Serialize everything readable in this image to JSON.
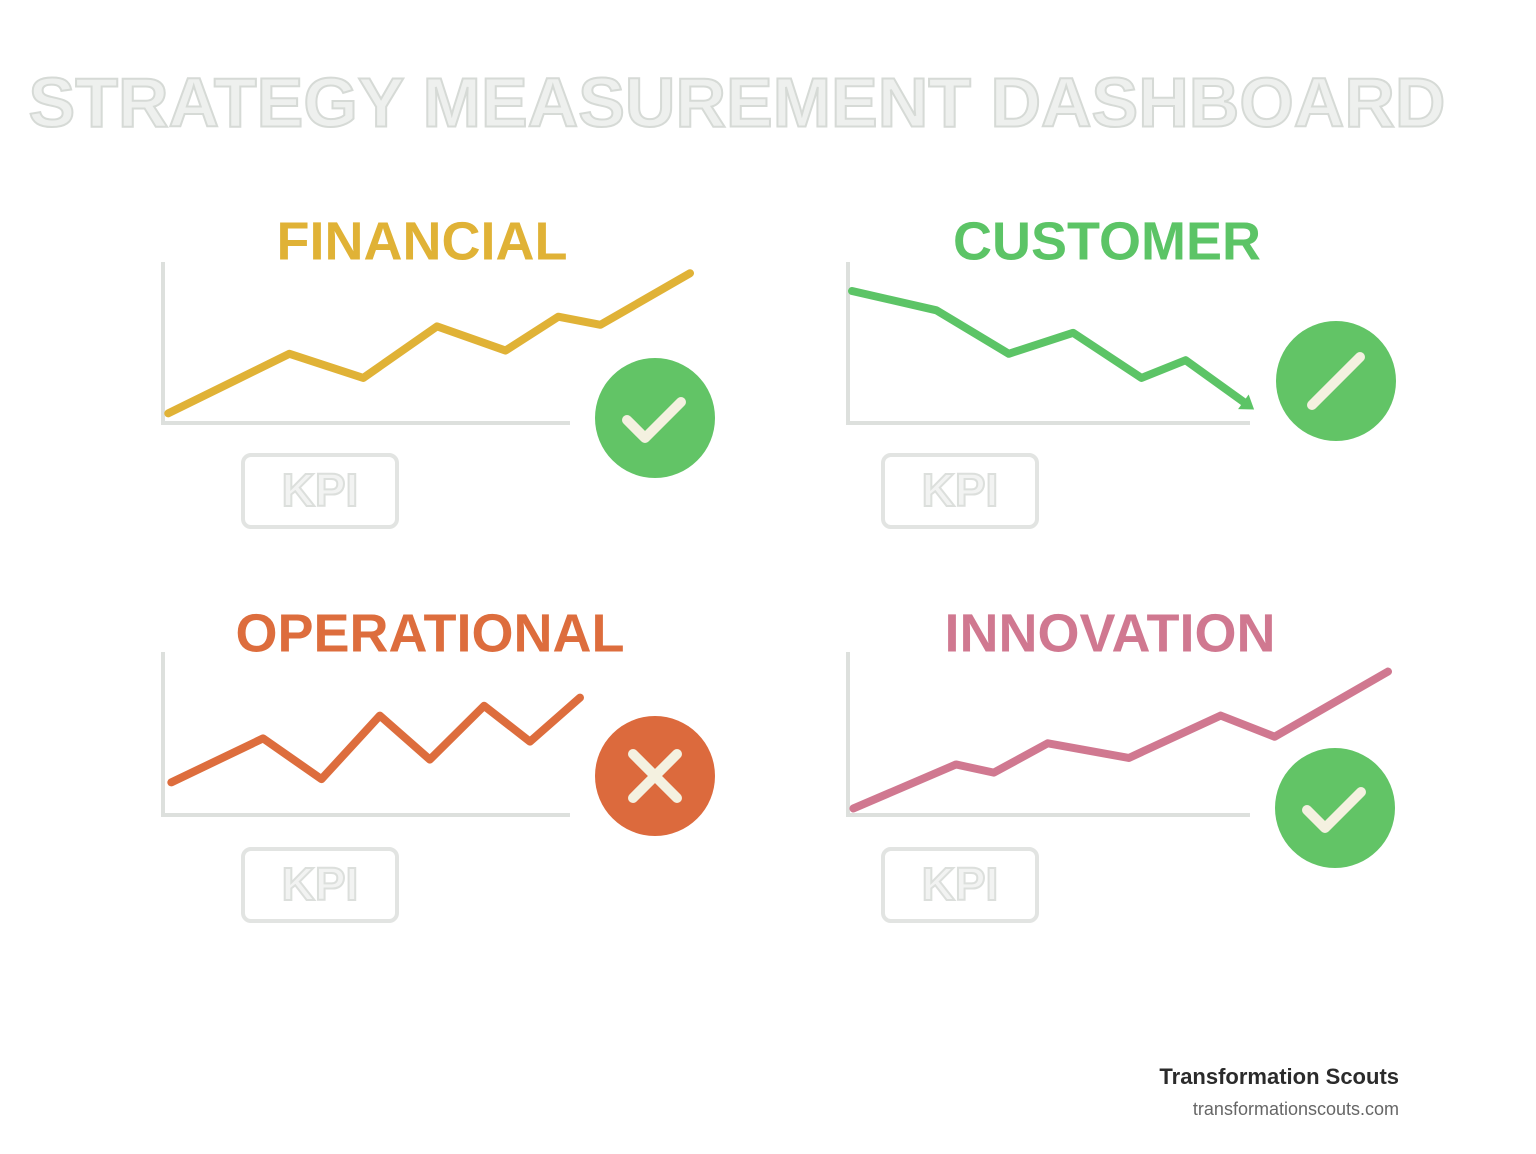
{
  "title": "STRATEGY MEASUREMENT DASHBOARD",
  "chart_data": [
    {
      "type": "line",
      "title": "FINANCIAL",
      "color": "#e0b236",
      "label": "KPI",
      "x": [
        1,
        24,
        38,
        52,
        65,
        75,
        83,
        100
      ],
      "values": [
        6,
        43,
        28,
        60,
        45,
        66,
        61,
        93
      ],
      "xlim": [
        0,
        100
      ],
      "ylim": [
        0,
        100
      ]
    },
    {
      "type": "line",
      "title": "CUSTOMER",
      "color": "#5cc466",
      "label": "KPI",
      "x": [
        1,
        22,
        40,
        56,
        73,
        84,
        99
      ],
      "values": [
        82,
        70,
        43,
        56,
        28,
        39,
        12
      ],
      "xlim": [
        0,
        100
      ],
      "ylim": [
        0,
        100
      ]
    },
    {
      "type": "line",
      "title": "OPERATIONAL",
      "color": "#dd6d3d",
      "label": "KPI",
      "x": [
        2,
        24,
        38,
        52,
        64,
        77,
        88,
        100
      ],
      "values": [
        20,
        47,
        22,
        61,
        34,
        67,
        45,
        72
      ],
      "xlim": [
        0,
        100
      ],
      "ylim": [
        0,
        100
      ]
    },
    {
      "type": "line",
      "title": "INNOVATION",
      "color": "#d07890",
      "label": "KPI",
      "x": [
        1,
        20,
        27,
        37,
        52,
        69,
        79,
        100
      ],
      "values": [
        4,
        31,
        26,
        44,
        35,
        61,
        48,
        88
      ],
      "xlim": [
        0,
        100
      ],
      "ylim": [
        0,
        100
      ]
    }
  ],
  "footer": {
    "brand": "Transformation Scouts",
    "url": "transformationscouts.com"
  }
}
